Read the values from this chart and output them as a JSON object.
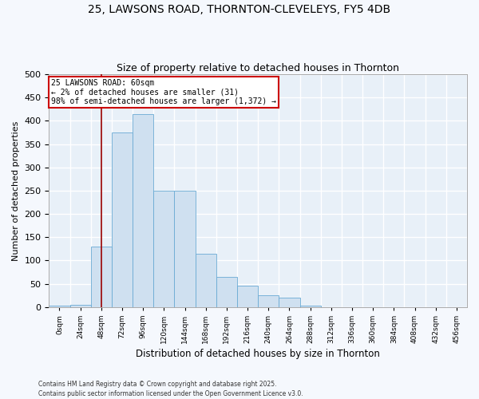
{
  "title": "25, LAWSONS ROAD, THORNTON-CLEVELEYS, FY5 4DB",
  "subtitle": "Size of property relative to detached houses in Thornton",
  "xlabel": "Distribution of detached houses by size in Thornton",
  "ylabel": "Number of detached properties",
  "bar_color": "#cfe0f0",
  "bar_edge_color": "#6aaad4",
  "fig_background_color": "#f5f8fd",
  "ax_background_color": "#e8f0f8",
  "grid_color": "#ffffff",
  "property_line_x": 60,
  "property_line_color": "#990000",
  "annotation_text": "25 LAWSONS ROAD: 60sqm\n← 2% of detached houses are smaller (31)\n98% of semi-detached houses are larger (1,372) →",
  "annotation_box_color": "#ffffff",
  "annotation_box_edge_color": "#cc0000",
  "footnote": "Contains HM Land Registry data © Crown copyright and database right 2025.\nContains public sector information licensed under the Open Government Licence v3.0.",
  "bin_edges": [
    0,
    24,
    48,
    72,
    96,
    120,
    144,
    168,
    192,
    216,
    240,
    264,
    288,
    312,
    336,
    360,
    384,
    408,
    432,
    456,
    480
  ],
  "bar_heights": [
    2,
    5,
    130,
    375,
    415,
    250,
    250,
    115,
    65,
    45,
    25,
    20,
    3,
    0,
    0,
    0,
    0,
    0,
    0,
    0
  ],
  "ylim": [
    0,
    500
  ],
  "yticks": [
    0,
    50,
    100,
    150,
    200,
    250,
    300,
    350,
    400,
    450,
    500
  ]
}
